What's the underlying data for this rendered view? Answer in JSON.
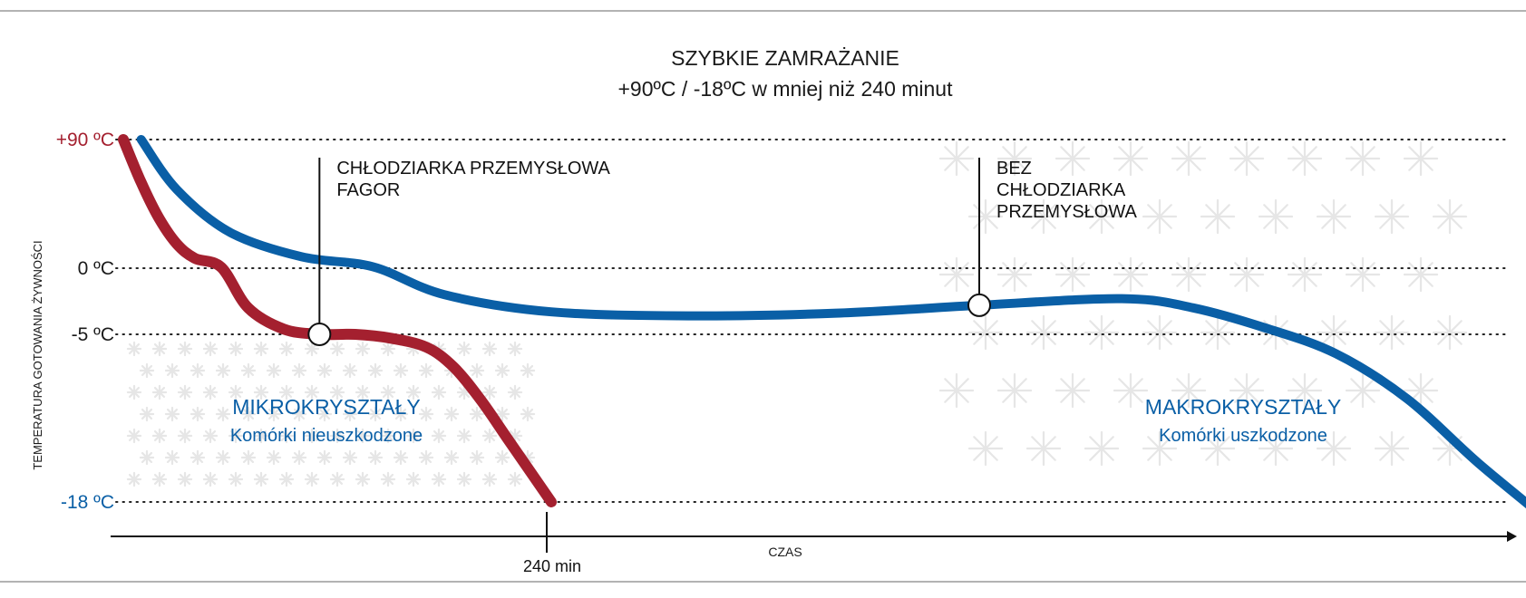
{
  "colors": {
    "red": "#a4202f",
    "blue": "#0a5fa6",
    "text": "#1a1a1a",
    "grid": "#222222",
    "snow": "#e6e6e6"
  },
  "chart_data": {
    "type": "line",
    "title": "SZYBKIE ZAMRAŻANIE",
    "subtitle": "+90ºC / -18ºC w mniej niż 240 minut",
    "xlabel": "CZAS",
    "ylabel": "TEMPERATURA GOTOWANIA ŻYWNOŚCI",
    "y_unit": "°C",
    "grid": "dotted horizontal lines at labeled temperatures",
    "y_levels": [
      {
        "value": 90,
        "label": "+90 ºC",
        "color": "red"
      },
      {
        "value": 0,
        "label": "0 ºC",
        "color": "text"
      },
      {
        "value": -5,
        "label": "-5 ºC",
        "color": "text"
      },
      {
        "value": -18,
        "label": "-18  ºC",
        "color": "blue"
      }
    ],
    "x_ticks": [
      {
        "value": 240,
        "label": "240 min"
      }
    ],
    "series": [
      {
        "color": "red",
        "x": [
          0,
          10,
          20,
          30,
          40,
          55,
          70,
          90,
          110,
          130,
          150,
          170,
          185,
          200,
          215,
          230,
          240
        ],
        "y": [
          90,
          60,
          35,
          17,
          7,
          0.5,
          -3,
          -4.6,
          -5,
          -5,
          -5.3,
          -6,
          -7.5,
          -10,
          -13,
          -16,
          -18
        ]
      },
      {
        "color": "blue",
        "x": [
          10,
          30,
          60,
          100,
          140,
          180,
          240,
          320,
          400,
          480,
          560,
          600,
          640,
          680,
          720,
          760,
          800
        ],
        "y": [
          90,
          55,
          25,
          8,
          1,
          -2,
          -3.3,
          -3.6,
          -3.4,
          -2.8,
          -2.3,
          -3,
          -4.5,
          -6.5,
          -10,
          -15,
          -20
        ]
      }
    ],
    "markers": [
      {
        "series": 0,
        "x": 110,
        "y": -5,
        "label_lines": [
          "CHŁODZIARKA PRZEMYSŁOWA",
          "FAGOR"
        ]
      },
      {
        "series": 1,
        "x": 480,
        "y": -2.8,
        "label_lines": [
          "BEZ",
          "CHŁODZIARKA",
          "PRZEMYSŁOWA"
        ]
      }
    ],
    "regions": [
      {
        "heading": "MIKROKRYSZTAŁY",
        "subheading": "Komórki nieuszkodzone",
        "color": "blue"
      },
      {
        "heading": "MAKROKRYSZTAŁY",
        "subheading": "Komórki uszkodzone",
        "color": "blue"
      }
    ]
  }
}
